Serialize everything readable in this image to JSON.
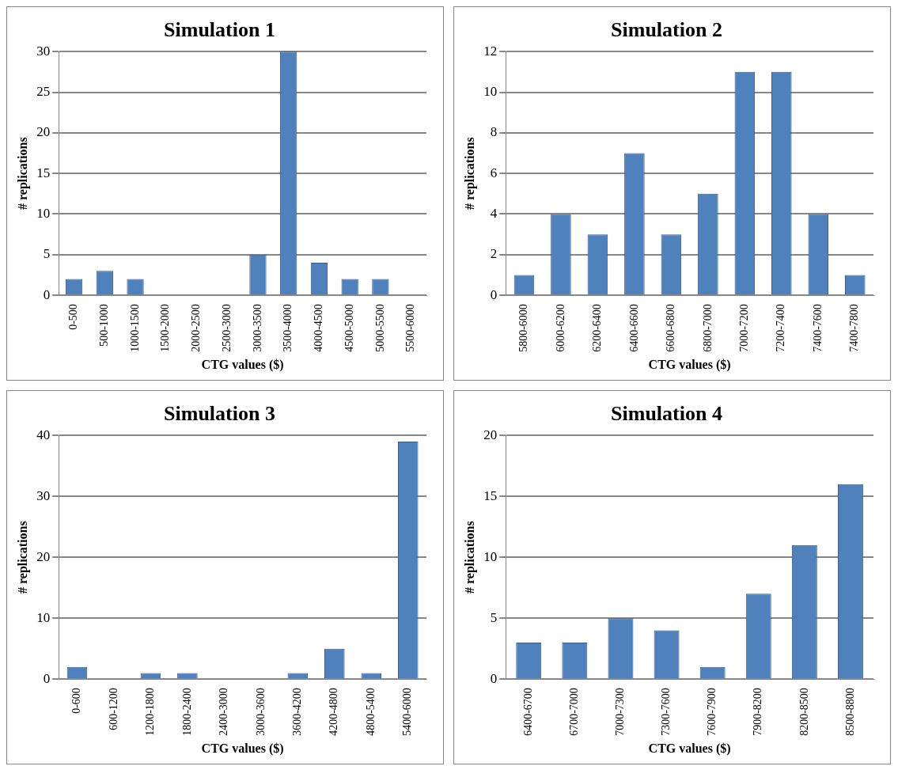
{
  "chart_data": [
    {
      "type": "bar",
      "title": "Simulation 1",
      "xlabel": "CTG values ($)",
      "ylabel": "# replications",
      "categories": [
        "0-500",
        "500-1000",
        "1000-1500",
        "1500-2000",
        "2000-2500",
        "2500-3000",
        "3000-3500",
        "3500-4000",
        "4000-4500",
        "4500-5000",
        "5000-5500",
        "5500-6000"
      ],
      "values": [
        2,
        3,
        2,
        0,
        0,
        0,
        5,
        30,
        4,
        2,
        2,
        0
      ],
      "color": "#4f81bd",
      "ylim": [
        0,
        30
      ],
      "yticks": [
        0,
        5,
        10,
        15,
        20,
        25,
        30
      ],
      "grid": "y"
    },
    {
      "type": "bar",
      "title": "Simulation 2",
      "xlabel": "CTG values ($)",
      "ylabel": "# replications",
      "categories": [
        "5800-6000",
        "6000-6200",
        "6200-6400",
        "6400-6600",
        "6600-6800",
        "6800-7000",
        "7000-7200",
        "7200-7400",
        "7400-7600",
        "7400-7800"
      ],
      "values": [
        1,
        4,
        3,
        7,
        3,
        5,
        11,
        11,
        4,
        1
      ],
      "color": "#4f81bd",
      "ylim": [
        0,
        12
      ],
      "yticks": [
        0,
        2,
        4,
        6,
        8,
        10,
        12
      ],
      "grid": "y"
    },
    {
      "type": "bar",
      "title": "Simulation 3",
      "xlabel": "CTG values ($)",
      "ylabel": "# replications",
      "categories": [
        "0-600",
        "600-1200",
        "1200-1800",
        "1800-2400",
        "2400-3000",
        "3000-3600",
        "3600-4200",
        "4200-4800",
        "4800-5400",
        "5400-6000"
      ],
      "values": [
        2,
        0,
        1,
        1,
        0,
        0,
        1,
        5,
        1,
        39
      ],
      "color": "#4f81bd",
      "ylim": [
        0,
        40
      ],
      "yticks": [
        0,
        10,
        20,
        30,
        40
      ],
      "grid": "y"
    },
    {
      "type": "bar",
      "title": "Simulation 4",
      "xlabel": "CTG values ($)",
      "ylabel": "# replications",
      "categories": [
        "6400-6700",
        "6700-7000",
        "7000-7300",
        "7300-7600",
        "7600-7900",
        "7900-8200",
        "8200-8500",
        "8500-8800"
      ],
      "values": [
        3,
        3,
        5,
        4,
        1,
        7,
        11,
        16
      ],
      "color": "#4f81bd",
      "ylim": [
        0,
        20
      ],
      "yticks": [
        0,
        5,
        10,
        15,
        20
      ],
      "grid": "y"
    }
  ]
}
